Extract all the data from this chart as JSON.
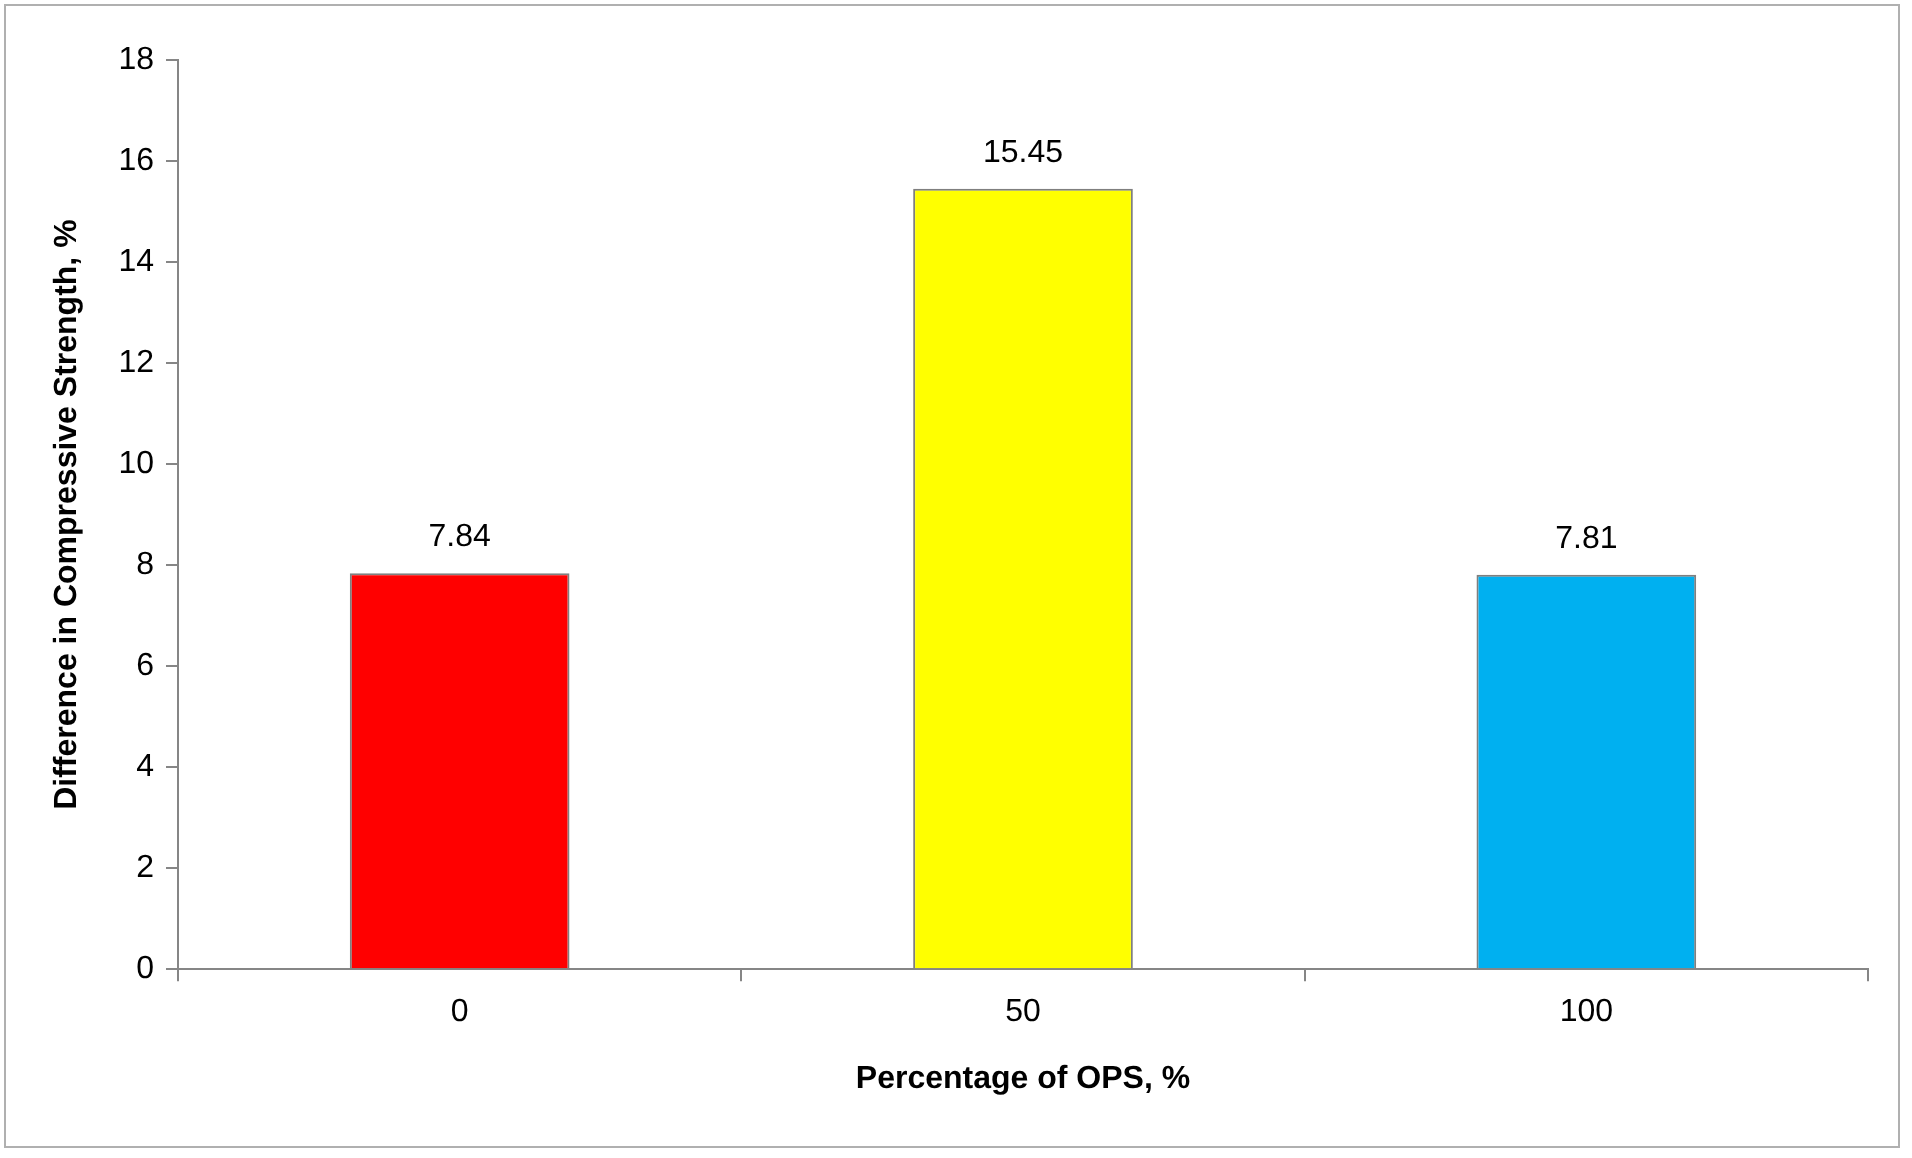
{
  "chart_data": {
    "type": "bar",
    "xlabel": "Percentage of OPS, %",
    "ylabel": "Difference in Compressive Strength, %",
    "categories": [
      "0",
      "50",
      "100"
    ],
    "values": [
      7.84,
      15.45,
      7.81
    ],
    "colors": [
      "#ff0000",
      "#ffff00",
      "#00b0f0"
    ],
    "ylim": [
      0,
      18
    ],
    "yticks": [
      0,
      2,
      4,
      6,
      8,
      10,
      12,
      14,
      16,
      18
    ],
    "data_labels": true,
    "grid": false,
    "legend": false
  }
}
